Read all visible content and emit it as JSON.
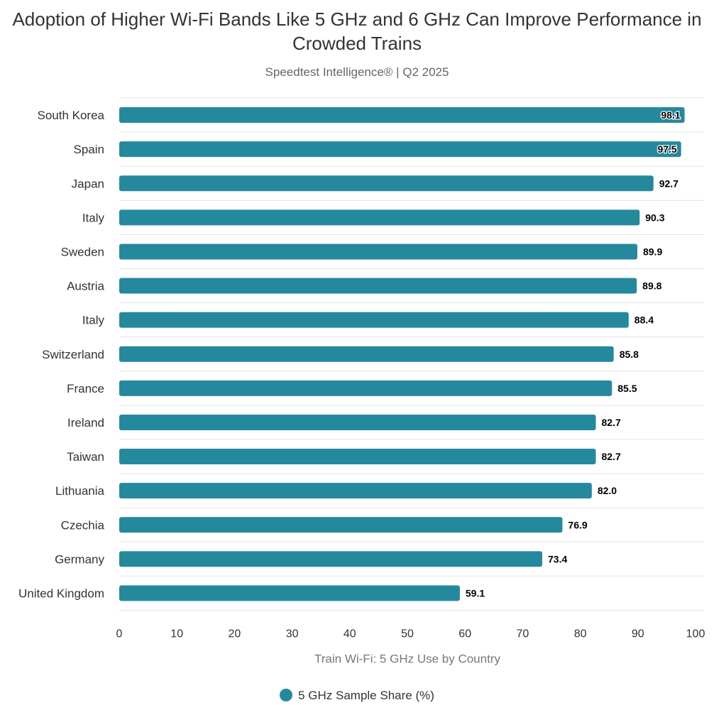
{
  "chart_data": {
    "type": "bar",
    "orientation": "horizontal",
    "title": "Adoption of Higher Wi-Fi Bands Like 5 GHz and 6 GHz Can Improve Performance in Crowded Trains",
    "subtitle": "Speedtest Intelligence® | Q2 2025",
    "xlabel": "Train Wi-Fi: 5 GHz Use by Country",
    "ylabel": "",
    "xlim": [
      0,
      100
    ],
    "x_ticks": [
      0,
      10,
      20,
      30,
      40,
      50,
      60,
      70,
      80,
      90,
      100
    ],
    "categories": [
      "South Korea",
      "Spain",
      "Japan",
      "Italy",
      "Sweden",
      "Austria",
      "Italy",
      "Switzerland",
      "France",
      "Ireland",
      "Taiwan",
      "Lithuania",
      "Czechia",
      "Germany",
      "United Kingdom"
    ],
    "series": [
      {
        "name": "5 GHz Sample Share (%)",
        "color": "#25899e",
        "values": [
          98.1,
          97.5,
          92.7,
          90.3,
          89.9,
          89.8,
          88.4,
          85.8,
          85.5,
          82.7,
          82.7,
          82.0,
          76.9,
          73.4,
          59.1
        ],
        "labels": [
          "98.1",
          "97.5",
          "92.7",
          "90.3",
          "89.9",
          "89.8",
          "88.4",
          "85.8",
          "85.5",
          "82.7",
          "82.7",
          "82.0",
          "76.9",
          "73.4",
          "59.1"
        ]
      }
    ],
    "grid": true,
    "legend": "bottom-center"
  }
}
